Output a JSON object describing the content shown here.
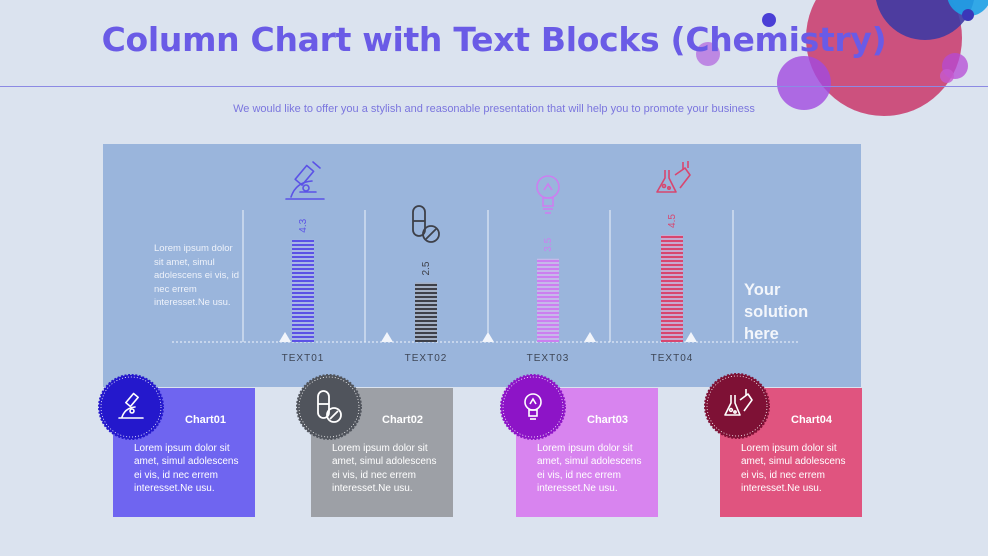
{
  "header": {
    "title": "Column Chart with Text Blocks (Chemistry)",
    "subtitle": "We would like to offer you a stylish and reasonable presentation that will help you to promote your business"
  },
  "side_text": "Lorem ipsum dolor sit amet, simul adolescens ei vis, id nec errem interesset.Ne usu.",
  "solution_text": "Your solution here",
  "colors": {
    "background": "#dbe3ef",
    "panel": "#9ab5dc",
    "series": [
      "#5b52e6",
      "#3e4049",
      "#cc7ff0",
      "#d8466f"
    ],
    "cards": [
      "#6f65f0",
      "#9da0a6",
      "#d884ef",
      "#e0547f"
    ],
    "badges": [
      "#2418cc",
      "#50545c",
      "#8d14c7",
      "#7e1135"
    ]
  },
  "chart_data": {
    "type": "bar",
    "categories": [
      "TEXT01",
      "TEXT02",
      "TEXT03",
      "TEXT04"
    ],
    "values": [
      4.3,
      2.5,
      3.5,
      4.5
    ],
    "data_labels": [
      "4.3",
      "2.5",
      "3.5",
      "4.5"
    ],
    "icons": [
      "microscope-icon",
      "pill-icon",
      "lightbulb-icon",
      "flask-icon"
    ],
    "ylim": [
      0,
      5
    ],
    "grid": false
  },
  "cards": [
    {
      "title": "Chart01",
      "body": "Lorem ipsum dolor sit amet, simul adolescens ei vis, id nec errem interesset.Ne usu.",
      "icon": "microscope-icon"
    },
    {
      "title": "Chart02",
      "body": "Lorem ipsum dolor sit amet, simul adolescens ei vis, id nec errem interesset.Ne usu.",
      "icon": "pill-icon"
    },
    {
      "title": "Chart03",
      "body": "Lorem ipsum dolor sit amet, simul adolescens ei vis, id nec errem interesset.Ne usu.",
      "icon": "lightbulb-icon"
    },
    {
      "title": "Chart04",
      "body": "Lorem ipsum dolor sit amet, simul adolescens ei vis, id nec errem interesset.Ne usu.",
      "icon": "flask-icon"
    }
  ]
}
